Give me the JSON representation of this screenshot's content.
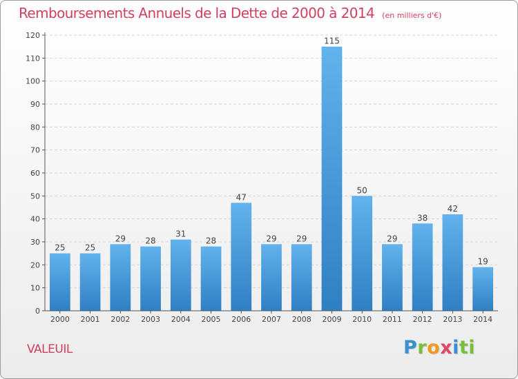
{
  "header": {
    "title": "Remboursements Annuels de la Dette de 2000 à 2014",
    "unit": "(en milliers d'€)"
  },
  "footer": {
    "place": "VALEUIL",
    "logo_letters": [
      "P",
      "r",
      "o",
      "x",
      "i",
      "ti"
    ]
  },
  "colors": {
    "title": "#d1405f",
    "bar_top": "#62b2ec",
    "bar_bottom": "#2f7fc4",
    "grid": "#d7d7d7"
  },
  "chart_data": {
    "type": "bar",
    "title": "Remboursements Annuels de la Dette de 2000 à 2014",
    "subtitle": "(en milliers d'€)",
    "categories": [
      "2000",
      "2001",
      "2002",
      "2003",
      "2004",
      "2005",
      "2006",
      "2007",
      "2008",
      "2009",
      "2010",
      "2011",
      "2012",
      "2013",
      "2014"
    ],
    "values": [
      25,
      25,
      29,
      28,
      31,
      28,
      47,
      29,
      29,
      115,
      50,
      29,
      38,
      42,
      19
    ],
    "xlabel": "",
    "ylabel": "",
    "ylim": [
      0,
      120
    ],
    "yticks": [
      0,
      10,
      20,
      30,
      40,
      50,
      60,
      70,
      80,
      90,
      100,
      110,
      120
    ],
    "grid": true,
    "data_labels": true
  }
}
